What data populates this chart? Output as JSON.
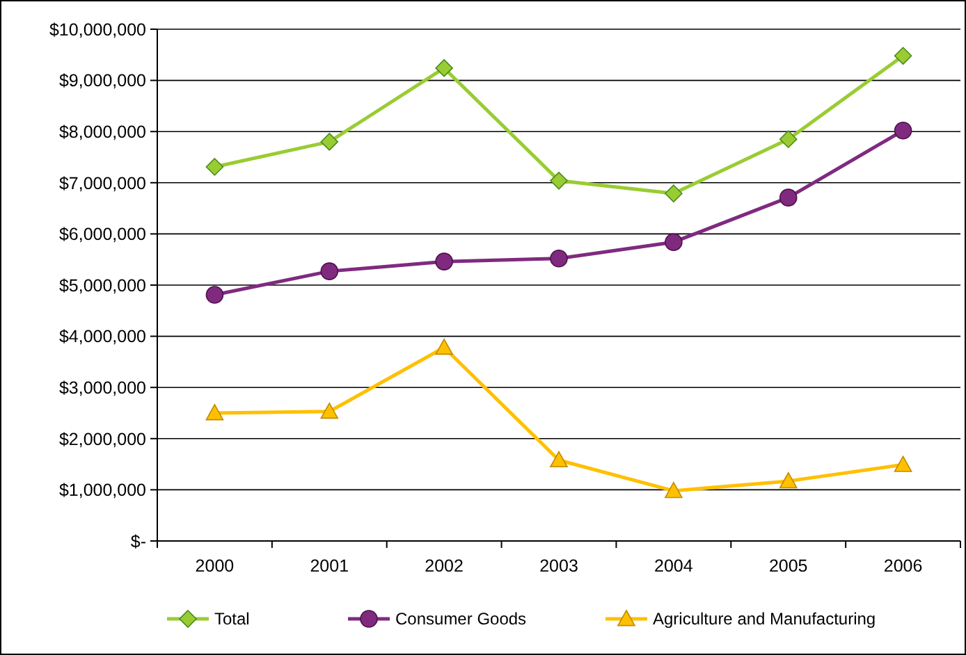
{
  "chart_data": {
    "type": "line",
    "categories": [
      "2000",
      "2001",
      "2002",
      "2003",
      "2004",
      "2005",
      "2006"
    ],
    "series": [
      {
        "name": "Total",
        "color": "#99cc33",
        "marker": "diamond",
        "values": [
          7310000,
          7800000,
          9240000,
          7040000,
          6790000,
          7850000,
          9480000
        ]
      },
      {
        "name": "Consumer Goods",
        "color": "#7f2a7f",
        "marker": "circle",
        "values": [
          4810000,
          5270000,
          5460000,
          5520000,
          5840000,
          6710000,
          8020000
        ]
      },
      {
        "name": "Agriculture and Manufacturing",
        "color": "#ffc000",
        "marker": "triangle",
        "values": [
          2500000,
          2530000,
          3780000,
          1580000,
          980000,
          1170000,
          1490000
        ]
      }
    ],
    "ylim": [
      0,
      10000000
    ],
    "yticks": [
      {
        "value": 0,
        "label": "$-"
      },
      {
        "value": 1000000,
        "label": "$1,000,000"
      },
      {
        "value": 2000000,
        "label": "$2,000,000"
      },
      {
        "value": 3000000,
        "label": "$3,000,000"
      },
      {
        "value": 4000000,
        "label": "$4,000,000"
      },
      {
        "value": 5000000,
        "label": "$5,000,000"
      },
      {
        "value": 6000000,
        "label": "$6,000,000"
      },
      {
        "value": 7000000,
        "label": "$7,000,000"
      },
      {
        "value": 8000000,
        "label": "$8,000,000"
      },
      {
        "value": 9000000,
        "label": "$9,000,000"
      },
      {
        "value": 10000000,
        "label": "$10,000,000"
      }
    ],
    "grid": "y",
    "legend": "bottom"
  }
}
